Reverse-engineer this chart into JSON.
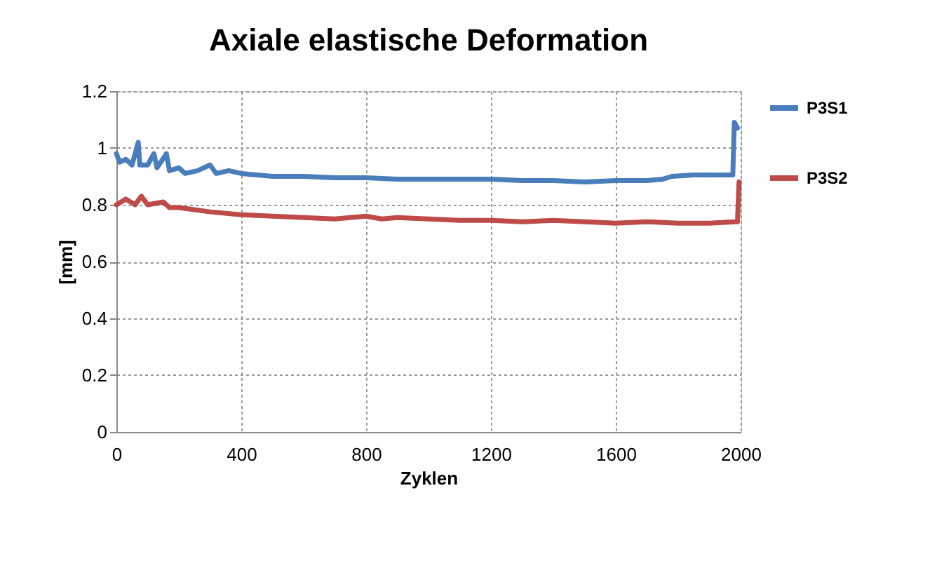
{
  "chart_data": {
    "type": "line",
    "title": "Axiale elastische Deformation",
    "xlabel": "Zyklen",
    "ylabel": "[mm]",
    "xlim": [
      0,
      2000
    ],
    "xticks": [
      0,
      400,
      800,
      1200,
      1600,
      2000
    ],
    "ylim": [
      0,
      1.2
    ],
    "yticks": [
      0,
      0.2,
      0.4,
      0.6,
      0.8,
      1,
      1.2
    ],
    "grid": true,
    "legend": "right",
    "marker": "none",
    "line_style": "solid",
    "series": [
      {
        "name": "P3S1",
        "color": "#4a7ebb",
        "x": [
          0,
          10,
          30,
          50,
          70,
          75,
          100,
          120,
          130,
          160,
          170,
          200,
          220,
          260,
          300,
          320,
          360,
          400,
          450,
          500,
          600,
          700,
          800,
          900,
          1000,
          1100,
          1200,
          1300,
          1400,
          1500,
          1600,
          1700,
          1750,
          1780,
          1850,
          1900,
          1975,
          1980,
          1990
        ],
        "values": [
          0.98,
          0.95,
          0.96,
          0.94,
          1.02,
          0.94,
          0.94,
          0.98,
          0.93,
          0.98,
          0.92,
          0.93,
          0.91,
          0.92,
          0.94,
          0.91,
          0.92,
          0.91,
          0.905,
          0.9,
          0.9,
          0.895,
          0.895,
          0.89,
          0.89,
          0.89,
          0.89,
          0.885,
          0.885,
          0.88,
          0.885,
          0.885,
          0.89,
          0.9,
          0.905,
          0.905,
          0.905,
          1.09,
          1.07
        ]
      },
      {
        "name": "P3S2",
        "color": "#be4b48",
        "x": [
          0,
          30,
          60,
          80,
          100,
          150,
          170,
          200,
          300,
          400,
          500,
          600,
          700,
          800,
          850,
          900,
          1000,
          1100,
          1200,
          1300,
          1400,
          1500,
          1600,
          1700,
          1800,
          1900,
          1985,
          1990,
          1995
        ],
        "values": [
          0.8,
          0.82,
          0.8,
          0.83,
          0.8,
          0.81,
          0.79,
          0.79,
          0.775,
          0.765,
          0.76,
          0.755,
          0.75,
          0.76,
          0.75,
          0.755,
          0.75,
          0.745,
          0.745,
          0.74,
          0.745,
          0.74,
          0.735,
          0.74,
          0.735,
          0.735,
          0.74,
          0.74,
          0.88
        ]
      }
    ]
  }
}
